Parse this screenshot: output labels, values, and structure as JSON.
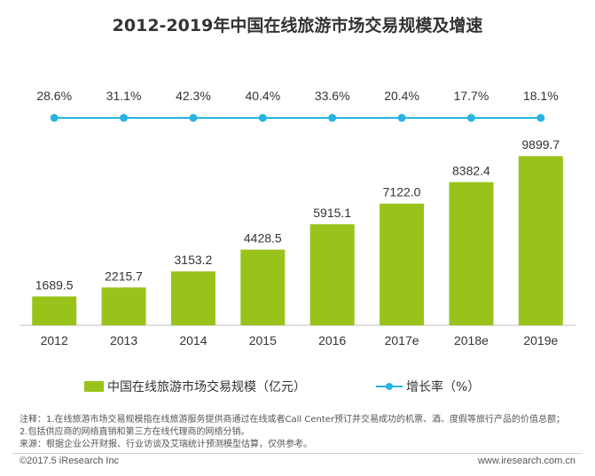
{
  "title": "2012-2019年中国在线旅游市场交易规模及增速",
  "chart_data": {
    "type": "bar",
    "categories": [
      "2012",
      "2013",
      "2014",
      "2015",
      "2016",
      "2017e",
      "2018e",
      "2019e"
    ],
    "series": [
      {
        "name": "中国在线旅游市场交易规模（亿元）",
        "type": "bar",
        "values": [
          1689.5,
          2215.7,
          3153.2,
          4428.5,
          5915.1,
          7122.0,
          8382.4,
          9899.7
        ],
        "labels": [
          "1689.5",
          "2215.7",
          "3153.2",
          "4428.5",
          "5915.1",
          "7122.0",
          "8382.4",
          "9899.7"
        ],
        "color": "#99c31a"
      },
      {
        "name": "增长率（%）",
        "type": "line",
        "values": [
          28.6,
          31.1,
          42.3,
          40.4,
          33.6,
          20.4,
          17.7,
          18.1
        ],
        "labels": [
          "28.6%",
          "31.1%",
          "42.3%",
          "40.4%",
          "33.6%",
          "20.4%",
          "17.7%",
          "18.1%"
        ],
        "color": "#27b3e3"
      }
    ],
    "ylim": [
      0,
      11000
    ],
    "grid": false,
    "legend_position": "bottom"
  },
  "legend": {
    "bar_label": "中国在线旅游市场交易规模（亿元）",
    "line_label": "增长率（%）"
  },
  "notes": [
    "注释：1.在线旅游市场交易规模指在线旅游服务提供商通过在线或者Call Center预订并交易成功的机票、酒、度假等旅行产品的价值总额；",
    "2.包括供应商的网络直销和第三方在线代理商的网络分销。",
    "来源：根据企业公开财报、行业访谈及艾瑞统计预测模型估算，仅供参考。"
  ],
  "footer": {
    "left": "©2017.5 iResearch Inc",
    "right": "www.iresearch.com.cn"
  }
}
